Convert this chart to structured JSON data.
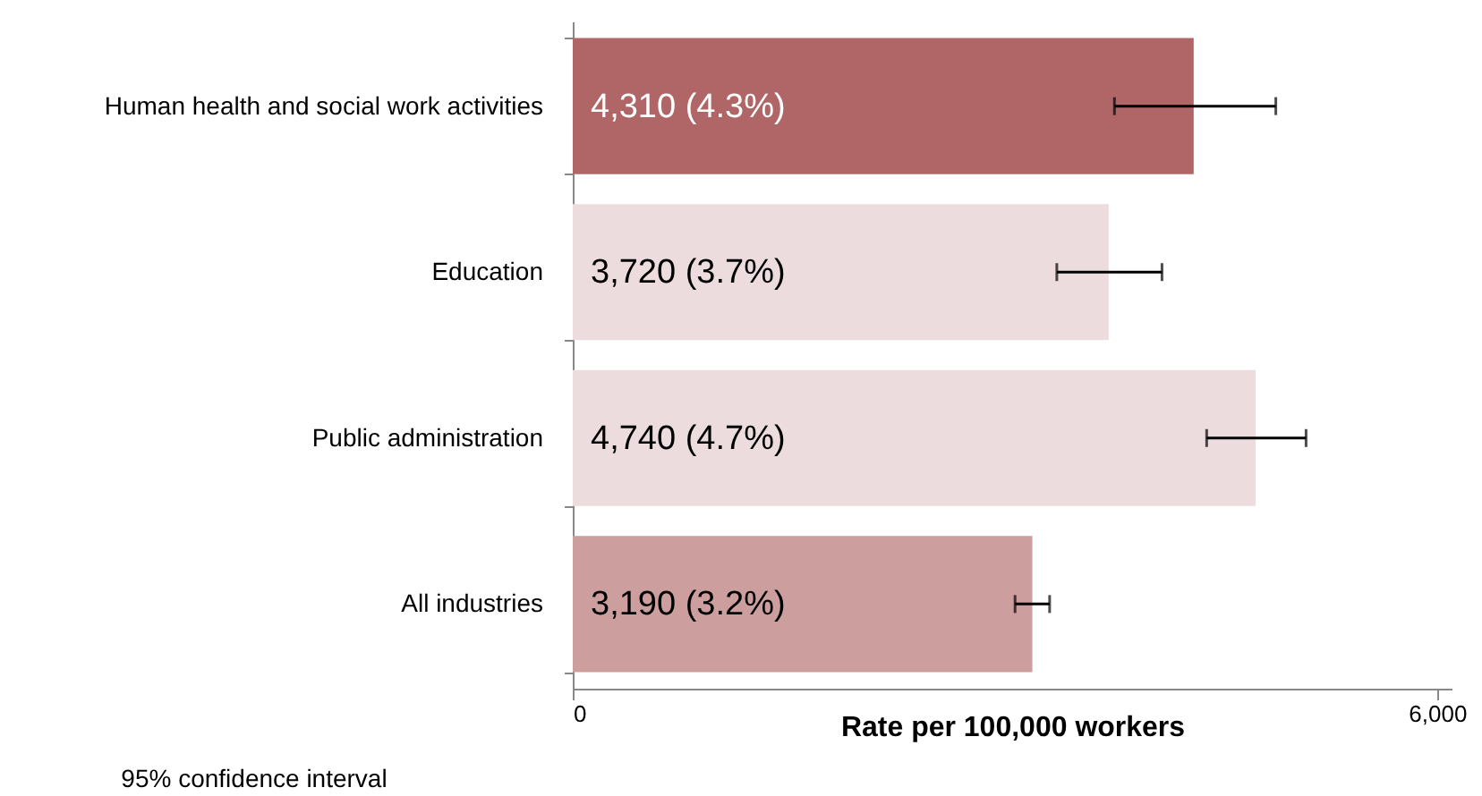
{
  "chart_data": {
    "type": "bar",
    "orientation": "horizontal",
    "categories": [
      "Human health and social work activities",
      "Education",
      "Public administration",
      "All industries"
    ],
    "values": [
      4310,
      3720,
      4740,
      3190
    ],
    "colors": [
      "#b06666",
      "#eddcdd",
      "#eddcdd",
      "#cc9e9e"
    ],
    "errors": [
      [
        3760,
        4880
      ],
      [
        3360,
        4090
      ],
      [
        4400,
        5090
      ],
      [
        3070,
        3310
      ]
    ],
    "value_labels": [
      "4,310 (4.3%)",
      "3,720 (3.7%)",
      "4,740 (4.7%)",
      "3,190 (3.2%)"
    ],
    "xlabel": "Rate per 100,000 workers",
    "xlim": [
      0,
      6100
    ],
    "xticks": [
      0,
      {
        "value": 6000,
        "label": "6,000"
      }
    ],
    "annotations": [
      "95% confidence interval"
    ],
    "grid": false
  }
}
